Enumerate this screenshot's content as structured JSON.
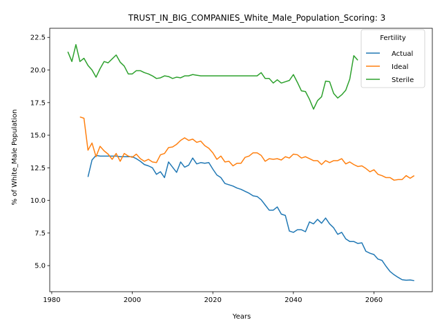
{
  "chart_data": {
    "type": "line",
    "title": "TRUST_IN_BIG_COMPANIES_White_Male_Population_Scoring: 3",
    "xlabel": "Years",
    "ylabel": "% of White_Male Population",
    "xlim": [
      1979.5,
      2074.5
    ],
    "ylim": [
      3.0,
      23.2
    ],
    "xticks": [
      1980,
      2000,
      2020,
      2040,
      2060
    ],
    "yticks": [
      5.0,
      7.5,
      10.0,
      12.5,
      15.0,
      17.5,
      20.0,
      22.5
    ],
    "legend": {
      "title": "Fertility",
      "position": "top-right"
    },
    "series": [
      {
        "name": "Actual",
        "color": "#1f77b4",
        "x": [
          1989,
          1990,
          1991,
          1992,
          1993,
          1994,
          1995,
          1996,
          1997,
          1998,
          1999,
          2000,
          2001,
          2002,
          2003,
          2004,
          2005,
          2006,
          2007,
          2008,
          2009,
          2010,
          2011,
          2012,
          2013,
          2014,
          2015,
          2016,
          2017,
          2018,
          2019,
          2020,
          2021,
          2022,
          2023,
          2024,
          2025,
          2026,
          2027,
          2028,
          2029,
          2030,
          2031,
          2032,
          2033,
          2034,
          2035,
          2036,
          2037,
          2038,
          2039,
          2040,
          2041,
          2042,
          2043,
          2044,
          2045,
          2046,
          2047,
          2048,
          2049,
          2050,
          2051,
          2052,
          2053,
          2054,
          2055,
          2056,
          2057,
          2058,
          2059,
          2060,
          2061,
          2062,
          2063,
          2064,
          2065,
          2066,
          2067,
          2068,
          2069,
          2070
        ],
        "y": [
          11.8,
          13.1,
          13.45,
          13.4,
          13.4,
          13.4,
          13.4,
          13.4,
          13.35,
          13.35,
          13.35,
          13.35,
          13.2,
          13.0,
          12.75,
          12.65,
          12.5,
          12.0,
          12.2,
          11.75,
          12.95,
          12.55,
          12.15,
          12.95,
          12.55,
          12.7,
          13.25,
          12.8,
          12.9,
          12.85,
          12.9,
          12.4,
          11.95,
          11.75,
          11.3,
          11.2,
          11.1,
          10.95,
          10.85,
          10.7,
          10.55,
          10.35,
          10.3,
          10.05,
          9.65,
          9.25,
          9.25,
          9.5,
          8.95,
          8.85,
          7.65,
          7.55,
          7.75,
          7.75,
          7.6,
          8.35,
          8.2,
          8.55,
          8.25,
          8.65,
          8.2,
          7.9,
          7.4,
          7.55,
          7.05,
          6.85,
          6.85,
          6.7,
          6.75,
          6.1,
          5.95,
          5.85,
          5.5,
          5.4,
          4.95,
          4.55,
          4.3,
          4.1,
          3.92,
          3.88,
          3.9,
          3.85
        ]
      },
      {
        "name": "Ideal",
        "color": "#ff7f0e",
        "x": [
          1987,
          1988,
          1989,
          1990,
          1991,
          1992,
          1993,
          1994,
          1995,
          1996,
          1997,
          1998,
          1999,
          2000,
          2001,
          2002,
          2003,
          2004,
          2005,
          2006,
          2007,
          2008,
          2009,
          2010,
          2011,
          2012,
          2013,
          2014,
          2015,
          2016,
          2017,
          2018,
          2019,
          2020,
          2021,
          2022,
          2023,
          2024,
          2025,
          2026,
          2027,
          2028,
          2029,
          2030,
          2031,
          2032,
          2033,
          2034,
          2035,
          2036,
          2037,
          2038,
          2039,
          2040,
          2041,
          2042,
          2043,
          2044,
          2045,
          2046,
          2047,
          2048,
          2049,
          2050,
          2051,
          2052,
          2053,
          2054,
          2055,
          2056,
          2057,
          2058,
          2059,
          2060,
          2061,
          2062,
          2063,
          2064,
          2065,
          2066,
          2067,
          2068,
          2069,
          2070
        ],
        "y": [
          16.4,
          16.3,
          13.85,
          14.4,
          13.35,
          14.15,
          13.8,
          13.55,
          13.15,
          13.6,
          13.0,
          13.6,
          13.4,
          13.3,
          13.55,
          13.2,
          13.0,
          13.15,
          12.95,
          12.9,
          13.5,
          13.6,
          14.05,
          14.1,
          14.3,
          14.6,
          14.8,
          14.6,
          14.7,
          14.45,
          14.55,
          14.2,
          14.0,
          13.65,
          13.15,
          13.4,
          12.95,
          13.0,
          12.65,
          12.85,
          12.85,
          13.3,
          13.4,
          13.65,
          13.65,
          13.45,
          13.0,
          13.2,
          13.15,
          13.2,
          13.1,
          13.35,
          13.25,
          13.55,
          13.5,
          13.25,
          13.35,
          13.2,
          13.05,
          13.05,
          12.75,
          13.05,
          12.9,
          13.05,
          13.05,
          13.2,
          12.8,
          12.95,
          12.75,
          12.6,
          12.65,
          12.45,
          12.2,
          12.35,
          12.0,
          11.9,
          11.75,
          11.75,
          11.55,
          11.6,
          11.6,
          11.9,
          11.7,
          11.9
        ]
      },
      {
        "name": "Sterile",
        "color": "#2ca02c",
        "x": [
          1984,
          1985,
          1986,
          1987,
          1988,
          1989,
          1990,
          1991,
          1992,
          1993,
          1994,
          1995,
          1996,
          1997,
          1998,
          1999,
          2000,
          2001,
          2002,
          2003,
          2004,
          2005,
          2006,
          2007,
          2008,
          2009,
          2010,
          2011,
          2012,
          2013,
          2014,
          2015,
          2016,
          2017,
          2018,
          2019,
          2020,
          2021,
          2022,
          2023,
          2024,
          2025,
          2026,
          2027,
          2028,
          2029,
          2030,
          2031,
          2032,
          2033,
          2034,
          2035,
          2036,
          2037,
          2038,
          2039,
          2040,
          2041,
          2042,
          2043,
          2044,
          2045,
          2046,
          2047,
          2048,
          2049,
          2050,
          2051,
          2052,
          2053,
          2054,
          2055,
          2056
        ],
        "y": [
          21.4,
          20.65,
          21.95,
          20.65,
          20.9,
          20.35,
          20.0,
          19.45,
          20.1,
          20.65,
          20.55,
          20.85,
          21.15,
          20.6,
          20.3,
          19.7,
          19.7,
          19.95,
          19.95,
          19.8,
          19.7,
          19.55,
          19.35,
          19.4,
          19.55,
          19.5,
          19.35,
          19.45,
          19.4,
          19.55,
          19.55,
          19.65,
          19.6,
          19.55,
          19.55,
          19.55,
          19.55,
          19.55,
          19.55,
          19.55,
          19.55,
          19.55,
          19.55,
          19.55,
          19.55,
          19.55,
          19.55,
          19.55,
          19.8,
          19.35,
          19.35,
          19.0,
          19.25,
          19.0,
          19.1,
          19.2,
          19.65,
          19.05,
          18.4,
          18.35,
          17.75,
          17.0,
          17.65,
          17.95,
          19.15,
          19.1,
          18.2,
          17.85,
          18.1,
          18.45,
          19.3,
          21.1,
          20.75
        ]
      }
    ]
  }
}
